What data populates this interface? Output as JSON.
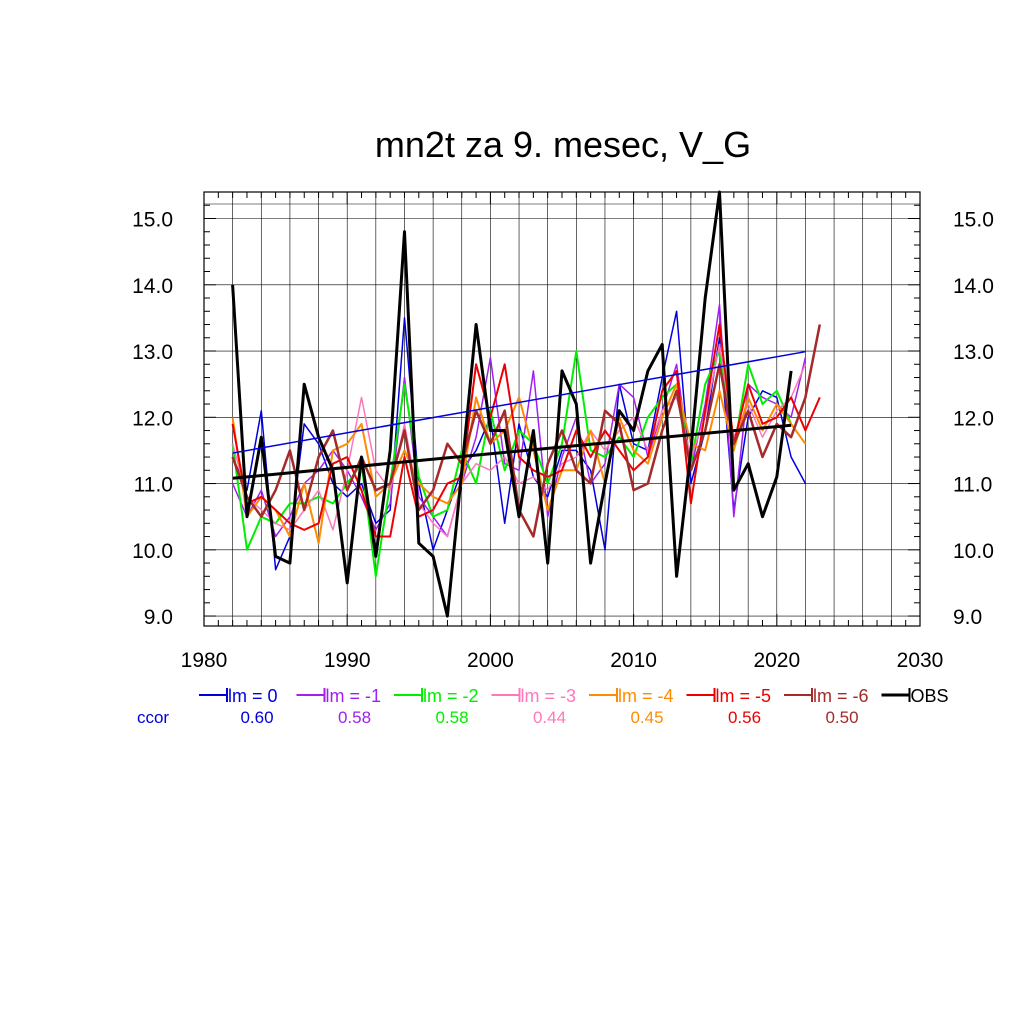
{
  "chart_data": {
    "type": "line",
    "title": "mn2t za 9. mesec, V_G",
    "xlabel": "",
    "ylabel": "",
    "xlim": [
      1980,
      2030
    ],
    "ylim": [
      8.85,
      15.4
    ],
    "x_ticks": [
      1980,
      1990,
      2000,
      2010,
      2020,
      2030
    ],
    "x_tick_labels": [
      "1980",
      "1990",
      "2000",
      "2010",
      "2020",
      "2030"
    ],
    "y_ticks": [
      9,
      10,
      11,
      12,
      13,
      14,
      15
    ],
    "y_tick_labels": [
      "9.0",
      "10.0",
      "11.0",
      "12.0",
      "13.0",
      "14.0",
      "15.0"
    ],
    "grid": true,
    "legend_position": "bottom",
    "ccor_label": "ccor",
    "series": [
      {
        "name": "lm = 0",
        "color": "#0000dd",
        "ccor": "0.60",
        "width": 1.5,
        "x_start": 1982,
        "values": [
          11.4,
          10.9,
          12.1,
          9.7,
          10.2,
          11.9,
          11.6,
          11.0,
          10.8,
          11.0,
          10.4,
          10.6,
          13.5,
          11.0,
          10.0,
          10.6,
          11.2,
          11.5,
          12.0,
          10.4,
          11.9,
          11.1,
          10.8,
          11.5,
          11.5,
          11.2,
          10.0,
          12.5,
          11.6,
          11.5,
          12.6,
          13.6,
          11.0,
          11.8,
          13.2,
          10.6,
          12.0,
          12.4,
          12.3,
          11.4,
          11.0
        ],
        "trend": [
          11.46,
          12.99
        ]
      },
      {
        "name": "lm = -1",
        "color": "#a020f0",
        "ccor": "0.58",
        "width": 1.5,
        "x_start": 1982,
        "values": [
          11.0,
          10.5,
          10.9,
          10.2,
          10.5,
          11.0,
          11.2,
          11.5,
          11.2,
          10.8,
          10.3,
          10.7,
          12.6,
          10.8,
          10.5,
          10.2,
          11.0,
          11.7,
          12.9,
          11.3,
          11.2,
          12.7,
          10.5,
          11.4,
          12.0,
          11.0,
          11.3,
          12.5,
          12.3,
          11.4,
          12.1,
          12.8,
          11.2,
          12.2,
          13.7,
          10.5,
          12.5,
          12.3,
          12.2,
          12.0,
          12.9
        ]
      },
      {
        "name": "lm = -2",
        "color": "#00ee00",
        "ccor": "0.58",
        "width": 2,
        "x_start": 1982,
        "values": [
          11.6,
          10.0,
          10.5,
          10.4,
          10.7,
          10.7,
          10.8,
          10.7,
          11.0,
          11.3,
          9.6,
          11.0,
          12.5,
          11.1,
          10.5,
          10.6,
          11.5,
          11.0,
          12.1,
          11.2,
          11.8,
          11.6,
          11.0,
          11.6,
          13.0,
          11.5,
          11.4,
          11.7,
          11.4,
          12.0,
          12.3,
          12.5,
          11.3,
          12.5,
          13.0,
          11.5,
          12.8,
          12.2,
          12.4,
          11.9
        ]
      },
      {
        "name": "lm = -3",
        "color": "#ff77bb",
        "ccor": "0.44",
        "width": 1.5,
        "x_start": 1982,
        "values": [
          11.6,
          10.8,
          10.6,
          10.4,
          10.3,
          10.6,
          10.9,
          10.3,
          11.2,
          12.3,
          11.2,
          10.9,
          11.9,
          10.7,
          10.4,
          10.2,
          11.0,
          11.3,
          11.2,
          11.4,
          11.0,
          11.1,
          10.9,
          11.3,
          11.4,
          11.8,
          11.5,
          11.8,
          12.0,
          11.5,
          12.1,
          12.3,
          11.4,
          12.0,
          13.1,
          11.7,
          12.2,
          11.7,
          12.1,
          12.3,
          12.8
        ]
      },
      {
        "name": "lm = -4",
        "color": "#ff8c00",
        "ccor": "0.45",
        "width": 2,
        "x_start": 1982,
        "values": [
          12.0,
          10.5,
          10.8,
          10.6,
          10.2,
          11.0,
          10.1,
          11.5,
          11.6,
          11.9,
          10.8,
          11.0,
          11.5,
          11.0,
          10.8,
          10.7,
          11.0,
          12.3,
          11.6,
          11.8,
          12.3,
          11.5,
          10.6,
          11.2,
          11.2,
          11.8,
          11.0,
          12.0,
          11.5,
          11.3,
          12.0,
          12.5,
          11.6,
          11.5,
          12.4,
          11.5,
          12.3,
          11.8,
          12.2,
          11.9,
          11.6
        ]
      },
      {
        "name": "lm = -5",
        "color": "#ee0000",
        "ccor": "0.56",
        "width": 2,
        "x_start": 1982,
        "values": [
          11.9,
          10.7,
          10.8,
          10.6,
          10.4,
          10.3,
          10.4,
          11.3,
          11.4,
          10.9,
          10.2,
          10.2,
          11.4,
          10.5,
          10.6,
          11.0,
          11.1,
          12.8,
          12.0,
          12.8,
          11.4,
          11.2,
          11.1,
          11.2,
          11.8,
          11.4,
          11.8,
          11.5,
          11.2,
          11.4,
          12.4,
          12.7,
          10.7,
          12.1,
          13.4,
          11.6,
          12.5,
          11.9,
          12.0,
          12.3,
          11.8,
          12.3
        ]
      },
      {
        "name": "lm = -6",
        "color": "#a52a2a",
        "ccor": "0.50",
        "width": 2.5,
        "x_start": 1982,
        "values": [
          11.4,
          10.8,
          10.5,
          10.9,
          11.5,
          10.6,
          11.4,
          11.8,
          10.9,
          11.4,
          10.9,
          11.0,
          11.8,
          10.6,
          10.9,
          11.6,
          11.3,
          12.1,
          11.6,
          12.1,
          10.6,
          10.2,
          11.3,
          11.8,
          11.2,
          11.0,
          12.1,
          11.9,
          10.9,
          11.0,
          11.8,
          12.4,
          11.2,
          11.8,
          12.8,
          11.6,
          12.1,
          11.4,
          11.9,
          11.7,
          12.3,
          13.4
        ]
      },
      {
        "name": "OBS",
        "color": "#000000",
        "ccor": "",
        "width": 3,
        "x_start": 1982,
        "values": [
          14.0,
          10.5,
          11.7,
          9.9,
          9.8,
          12.5,
          11.7,
          11.2,
          9.5,
          11.4,
          9.9,
          11.5,
          14.8,
          10.1,
          9.9,
          9.0,
          11.2,
          13.4,
          11.8,
          11.8,
          10.5,
          11.8,
          9.8,
          12.7,
          12.2,
          9.8,
          11.0,
          12.1,
          11.8,
          12.7,
          13.1,
          9.6,
          11.5,
          13.8,
          15.4,
          10.9,
          11.3,
          10.5,
          11.1,
          12.7
        ],
        "trend": [
          11.08,
          11.88
        ]
      }
    ]
  }
}
